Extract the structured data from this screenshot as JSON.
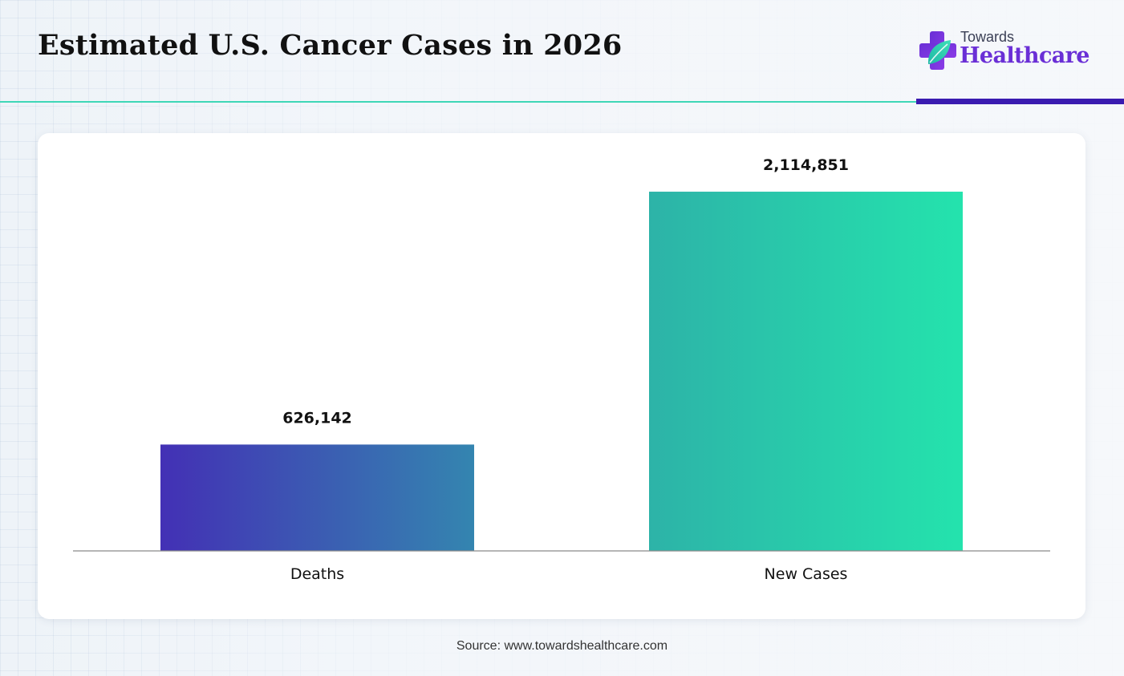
{
  "title": "Estimated U.S. Cancer Cases in 2026",
  "logo": {
    "line1": "Towards",
    "line2": "Healthcare"
  },
  "source": "Source: www.towardshealthcare.com",
  "colors": {
    "accent_teal": "#3fd7b7",
    "accent_purple": "#3a1bb0",
    "deaths_gradient": [
      "#4330b5",
      "#3485b0"
    ],
    "new_cases_gradient": [
      "#2db3a8",
      "#24e3ad"
    ]
  },
  "chart_data": {
    "type": "bar",
    "title": "Estimated U.S. Cancer Cases in 2026",
    "xlabel": "",
    "ylabel": "",
    "categories": [
      "Deaths",
      "New Cases"
    ],
    "values": [
      626142,
      2114851
    ],
    "data_labels": [
      "626,142",
      "2,114,851"
    ],
    "ylim": [
      0,
      2200000
    ],
    "grid": false,
    "legend": "none"
  }
}
